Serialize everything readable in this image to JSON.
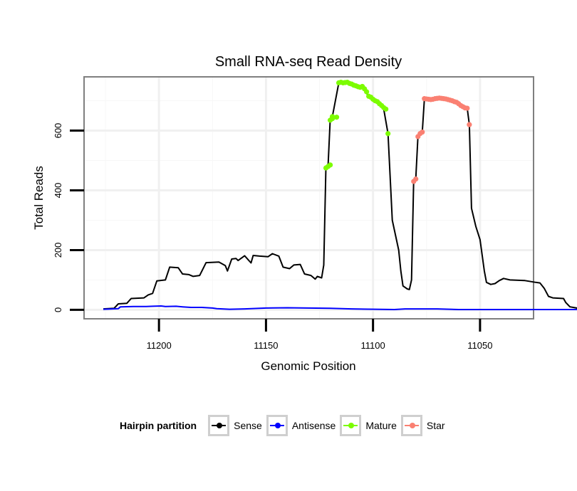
{
  "chart_data": {
    "type": "line",
    "title": "Small RNA-seq Read Density",
    "xlabel": "Genomic Position",
    "ylabel": "Total Reads",
    "x_reversed": true,
    "xlim": [
      11235,
      11025
    ],
    "ylim": [
      -30,
      780
    ],
    "x_ticks": [
      11200,
      11150,
      11100,
      11050
    ],
    "x_tick_labels": [
      "11200",
      "11150",
      "11100",
      "11050"
    ],
    "y_ticks": [
      0,
      200,
      400,
      600
    ],
    "y_tick_labels": [
      "0",
      "200",
      "400",
      "600"
    ],
    "grid": true,
    "legend": {
      "title": "Hairpin partition",
      "position": "bottom",
      "entries": [
        {
          "label": "Sense",
          "color": "#000000"
        },
        {
          "label": "Antisense",
          "color": "#0000ff"
        },
        {
          "label": "Mature",
          "color": "#7cfc00"
        },
        {
          "label": "Star",
          "color": "#fa8072"
        }
      ]
    },
    "series": [
      {
        "name": "Sense",
        "color": "#000000",
        "kind": "line",
        "points": [
          [
            11226,
            3
          ],
          [
            11221,
            5
          ],
          [
            11219,
            20
          ],
          [
            11215,
            22
          ],
          [
            11213,
            38
          ],
          [
            11207,
            40
          ],
          [
            11205,
            50
          ],
          [
            11203,
            55
          ],
          [
            11201,
            97
          ],
          [
            11197,
            100
          ],
          [
            11195,
            143
          ],
          [
            11191,
            141
          ],
          [
            11189,
            120
          ],
          [
            11186,
            118
          ],
          [
            11184,
            112
          ],
          [
            11181,
            115
          ],
          [
            11178,
            158
          ],
          [
            11172,
            160
          ],
          [
            11169,
            148
          ],
          [
            11168,
            130
          ],
          [
            11166,
            170
          ],
          [
            11164,
            172
          ],
          [
            11163,
            165
          ],
          [
            11160,
            181
          ],
          [
            11157,
            157
          ],
          [
            11156,
            182
          ],
          [
            11153,
            180
          ],
          [
            11149,
            178
          ],
          [
            11147,
            188
          ],
          [
            11144,
            180
          ],
          [
            11142,
            143
          ],
          [
            11139,
            138
          ],
          [
            11137,
            150
          ],
          [
            11134,
            152
          ],
          [
            11132,
            120
          ],
          [
            11129,
            115
          ],
          [
            11127,
            103
          ],
          [
            11126,
            112
          ],
          [
            11124,
            107
          ],
          [
            11123,
            150
          ],
          [
            11122,
            475
          ],
          [
            11121,
            480
          ],
          [
            11120,
            635
          ],
          [
            11119,
            647
          ],
          [
            11116,
            760
          ],
          [
            11112,
            762
          ],
          [
            11108,
            750
          ],
          [
            11105,
            745
          ],
          [
            11102,
            715
          ],
          [
            11099,
            700
          ],
          [
            11097,
            690
          ],
          [
            11095,
            672
          ],
          [
            11093,
            590
          ],
          [
            11091,
            300
          ],
          [
            11088,
            200
          ],
          [
            11087,
            130
          ],
          [
            11086,
            80
          ],
          [
            11084,
            70
          ],
          [
            11083,
            68
          ],
          [
            11082,
            100
          ],
          [
            11081,
            430
          ],
          [
            11080,
            440
          ],
          [
            11079,
            580
          ],
          [
            11077,
            595
          ],
          [
            11076,
            707
          ],
          [
            11073,
            705
          ],
          [
            11070,
            708
          ],
          [
            11066,
            706
          ],
          [
            11063,
            700
          ],
          [
            11060,
            695
          ],
          [
            11058,
            680
          ],
          [
            11056,
            675
          ],
          [
            11055,
            620
          ],
          [
            11054,
            340
          ],
          [
            11052,
            280
          ],
          [
            11050,
            235
          ],
          [
            11048,
            130
          ],
          [
            11047,
            92
          ],
          [
            11045,
            85
          ],
          [
            11043,
            88
          ],
          [
            11041,
            98
          ],
          [
            11039,
            105
          ],
          [
            11036,
            100
          ],
          [
            11029,
            98
          ],
          [
            11024,
            92
          ],
          [
            11022,
            90
          ],
          [
            11020,
            72
          ],
          [
            11018,
            45
          ],
          [
            11016,
            40
          ],
          [
            11011,
            38
          ],
          [
            11010,
            25
          ],
          [
            11008,
            10
          ],
          [
            11004,
            5
          ],
          [
            11000,
            3
          ],
          [
            10993,
            3
          ]
        ]
      },
      {
        "name": "Antisense",
        "color": "#0000ff",
        "kind": "line",
        "points": [
          [
            11226,
            2
          ],
          [
            11219,
            4
          ],
          [
            11218,
            10
          ],
          [
            11212,
            11
          ],
          [
            11206,
            11
          ],
          [
            11203,
            12
          ],
          [
            11199,
            13
          ],
          [
            11197,
            11
          ],
          [
            11192,
            12
          ],
          [
            11189,
            10
          ],
          [
            11185,
            8
          ],
          [
            11180,
            8
          ],
          [
            11175,
            6
          ],
          [
            11173,
            4
          ],
          [
            11167,
            2
          ],
          [
            11160,
            3
          ],
          [
            11150,
            6
          ],
          [
            11140,
            7
          ],
          [
            11130,
            6
          ],
          [
            11120,
            5
          ],
          [
            11110,
            3
          ],
          [
            11090,
            1
          ],
          [
            11085,
            3
          ],
          [
            11070,
            3
          ],
          [
            11060,
            1
          ],
          [
            11040,
            1
          ],
          [
            11000,
            1
          ],
          [
            10993,
            1
          ]
        ]
      },
      {
        "name": "Mature",
        "color": "#7cfc00",
        "kind": "points",
        "points": [
          [
            11122,
            475
          ],
          [
            11121,
            480
          ],
          [
            11120,
            485
          ],
          [
            11120,
            635
          ],
          [
            11119,
            640
          ],
          [
            11119,
            647
          ],
          [
            11117,
            645
          ],
          [
            11116,
            760
          ],
          [
            11115,
            762
          ],
          [
            11114,
            760
          ],
          [
            11113,
            761
          ],
          [
            11112,
            762
          ],
          [
            11111,
            758
          ],
          [
            11110,
            756
          ],
          [
            11109,
            752
          ],
          [
            11108,
            750
          ],
          [
            11107,
            747
          ],
          [
            11106,
            745
          ],
          [
            11105,
            748
          ],
          [
            11104,
            740
          ],
          [
            11103,
            730
          ],
          [
            11102,
            715
          ],
          [
            11101,
            712
          ],
          [
            11100,
            705
          ],
          [
            11099,
            700
          ],
          [
            11098,
            697
          ],
          [
            11097,
            690
          ],
          [
            11096,
            684
          ],
          [
            11095,
            677
          ],
          [
            11094,
            672
          ],
          [
            11093,
            590
          ]
        ]
      },
      {
        "name": "Star",
        "color": "#fa8072",
        "kind": "points",
        "points": [
          [
            11081,
            430
          ],
          [
            11080,
            438
          ],
          [
            11079,
            580
          ],
          [
            11078,
            590
          ],
          [
            11077,
            595
          ],
          [
            11076,
            707
          ],
          [
            11075,
            706
          ],
          [
            11074,
            705
          ],
          [
            11073,
            704
          ],
          [
            11072,
            705
          ],
          [
            11071,
            707
          ],
          [
            11070,
            708
          ],
          [
            11069,
            709
          ],
          [
            11068,
            708
          ],
          [
            11067,
            707
          ],
          [
            11066,
            706
          ],
          [
            11065,
            704
          ],
          [
            11064,
            702
          ],
          [
            11063,
            700
          ],
          [
            11062,
            697
          ],
          [
            11061,
            695
          ],
          [
            11060,
            690
          ],
          [
            11059,
            684
          ],
          [
            11058,
            680
          ],
          [
            11057,
            676
          ],
          [
            11056,
            675
          ],
          [
            11055,
            620
          ]
        ]
      }
    ]
  }
}
